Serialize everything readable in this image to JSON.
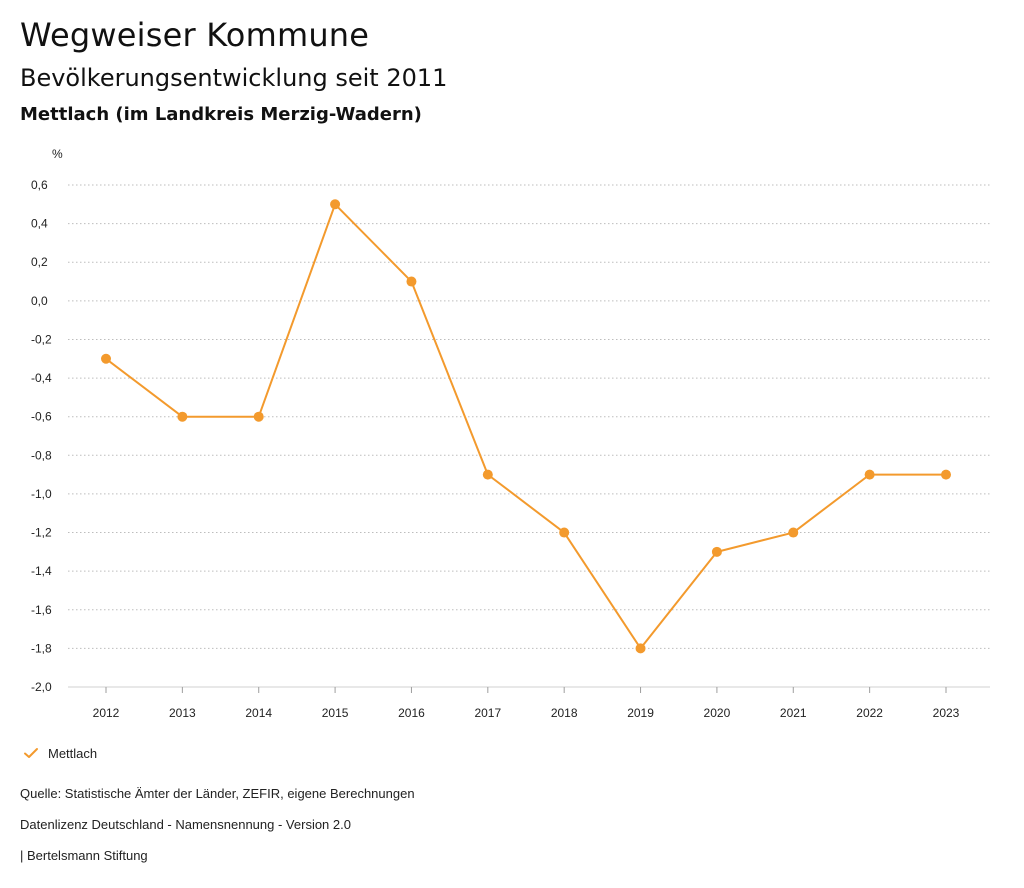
{
  "header": {
    "title": "Wegweiser Kommune",
    "subtitle": "Bevölkerungsentwicklung seit 2011",
    "region": "Mettlach (im Landkreis Merzig-Wadern)"
  },
  "chart_data": {
    "type": "line",
    "unit": "%",
    "categories": [
      "2012",
      "2013",
      "2014",
      "2015",
      "2016",
      "2017",
      "2018",
      "2019",
      "2020",
      "2021",
      "2022",
      "2023"
    ],
    "series": [
      {
        "name": "Mettlach",
        "values": [
          -0.3,
          -0.6,
          -0.6,
          0.5,
          0.1,
          -0.9,
          -1.2,
          -1.8,
          -1.3,
          -1.2,
          -0.9,
          -0.9
        ],
        "color": "#F39A2D"
      }
    ],
    "ylim": [
      -2.0,
      0.6
    ],
    "yticks": [
      0.6,
      0.4,
      0.2,
      0.0,
      -0.2,
      -0.4,
      -0.6,
      -0.8,
      -1.0,
      -1.2,
      -1.4,
      -1.6,
      -1.8,
      -2.0
    ],
    "ytick_labels": [
      "0,6",
      "0,4",
      "0,2",
      "0,0",
      "-0,2",
      "-0,4",
      "-0,6",
      "-0,8",
      "-1,0",
      "-1,2",
      "-1,4",
      "-1,6",
      "-1,8",
      "-2,0"
    ],
    "grid": true,
    "legend_position": "bottom-left"
  },
  "legend": {
    "label": "Mettlach",
    "icon": "check-icon"
  },
  "footer": {
    "source": "Quelle: Statistische Ämter der Länder, ZEFIR, eigene Berechnungen",
    "license": "Datenlizenz Deutschland - Namensnennung - Version 2.0",
    "brand": "| Bertelsmann Stiftung"
  }
}
